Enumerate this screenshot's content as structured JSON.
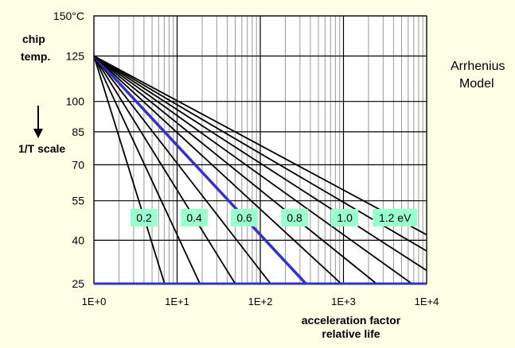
{
  "chart_data": {
    "type": "line",
    "y_label_lines": [
      "chip",
      "temp."
    ],
    "y_scale_label": "1/T scale",
    "x_label_lines": [
      "acceleration factor",
      "relative life"
    ],
    "model_title_lines": [
      "Arrhenius",
      "Model"
    ],
    "x_scale": "log",
    "xlim": [
      1,
      10000
    ],
    "ylim_celsius": [
      25,
      150
    ],
    "y_scale": "reciprocal kelvin",
    "x_ticks": [
      "1E+0",
      "1E+1",
      "1E+2",
      "1E+3",
      "1E+4"
    ],
    "y_ticks": [
      {
        "value": 150,
        "label": "150°C"
      },
      {
        "value": 125,
        "label": "125"
      },
      {
        "value": 100,
        "label": "100"
      },
      {
        "value": 85,
        "label": "85"
      },
      {
        "value": 70,
        "label": "70"
      },
      {
        "value": 55,
        "label": "55"
      },
      {
        "value": 40,
        "label": "40"
      },
      {
        "value": 25,
        "label": "25"
      }
    ],
    "reference_temp_celsius": 125,
    "activation_energies_eV": [
      0.2,
      0.3,
      0.4,
      0.5,
      0.6,
      0.7,
      0.8,
      0.9,
      1.0,
      1.1,
      1.2
    ],
    "labeled_energies": [
      {
        "ea": 0.2,
        "label": "0.2"
      },
      {
        "ea": 0.4,
        "label": "0.4"
      },
      {
        "ea": 0.6,
        "label": "0.6"
      },
      {
        "ea": 0.8,
        "label": "0.8"
      },
      {
        "ea": 1.0,
        "label": "1.0"
      },
      {
        "ea": 1.2,
        "label": "1.2 eV"
      }
    ],
    "highlighted_energy_eV": 0.6,
    "grid": true,
    "colors": {
      "background": "#ffffe6",
      "plot": "#ffffff",
      "line": "#000000",
      "highlight": "#3333cc",
      "label_box": "#99ffcc",
      "grid_major": "#000000",
      "grid_minor": "#999999"
    }
  }
}
